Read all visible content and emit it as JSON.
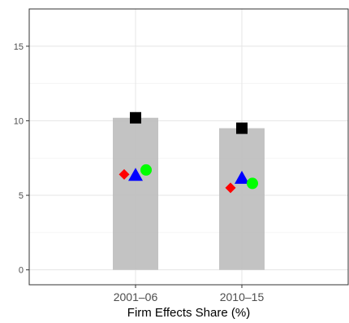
{
  "chart_data": {
    "type": "bar",
    "categories": [
      "2001–06",
      "2010–15"
    ],
    "xlabel": "Firm Effects Share (%)",
    "ylabel": "",
    "ylim": [
      -1,
      17.5
    ],
    "yticks": [
      0,
      5,
      10,
      15
    ],
    "grid": true,
    "legend": "none",
    "bars": {
      "values": [
        10.2,
        9.5
      ],
      "color": "#bdbdbd"
    },
    "points": [
      {
        "marker": "square",
        "color": "#000000",
        "values": [
          10.2,
          9.5
        ]
      },
      {
        "marker": "diamond",
        "color": "#ff0000",
        "values": [
          6.4,
          5.5
        ]
      },
      {
        "marker": "triangle",
        "color": "#0000ff",
        "values": [
          6.3,
          6.1
        ]
      },
      {
        "marker": "circle",
        "color": "#00ff00",
        "values": [
          6.7,
          5.8
        ]
      }
    ]
  }
}
